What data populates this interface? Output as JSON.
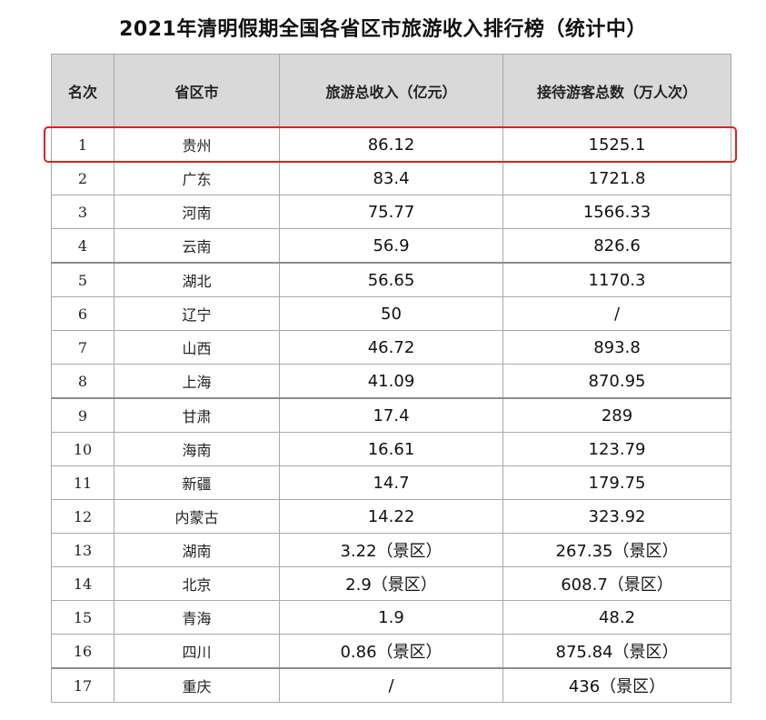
{
  "title": "2021年清明假期全国各省区市旅游收入排行榜（统计中）",
  "headers": [
    "名次",
    "省区市",
    "旅游总收入（亿元）",
    "接待游客总数（万人次）"
  ],
  "rows": [
    {
      "rank": "1",
      "province": "贵州",
      "revenue": "86.12",
      "visitors": "1525.1"
    },
    {
      "rank": "2",
      "province": "广东",
      "revenue": "83.4",
      "visitors": "1721.8"
    },
    {
      "rank": "3",
      "province": "河南",
      "revenue": "75.77",
      "visitors": "1566.33"
    },
    {
      "rank": "4",
      "province": "云南",
      "revenue": "56.9",
      "visitors": "826.6"
    },
    {
      "rank": "5",
      "province": "湖北",
      "revenue": "56.65",
      "visitors": "1170.3"
    },
    {
      "rank": "6",
      "province": "辽宁",
      "revenue": "50",
      "visitors": "/"
    },
    {
      "rank": "7",
      "province": "山西",
      "revenue": "46.72",
      "visitors": "893.8"
    },
    {
      "rank": "8",
      "province": "上海",
      "revenue": "41.09",
      "visitors": "870.95"
    },
    {
      "rank": "9",
      "province": "甘肃",
      "revenue": "17.4",
      "visitors": "289"
    },
    {
      "rank": "10",
      "province": "海南",
      "revenue": "16.61",
      "visitors": "123.79"
    },
    {
      "rank": "11",
      "province": "新疆",
      "revenue": "14.7",
      "visitors": "179.75"
    },
    {
      "rank": "12",
      "province": "内蒙古",
      "revenue": "14.22",
      "visitors": "323.92"
    },
    {
      "rank": "13",
      "province": "湖南",
      "revenue": "3.22（景区）",
      "visitors": "267.35（景区）"
    },
    {
      "rank": "14",
      "province": "北京",
      "revenue": "2.9（景区）",
      "visitors": "608.7（景区）"
    },
    {
      "rank": "15",
      "province": "青海",
      "revenue": "1.9",
      "visitors": "48.2"
    },
    {
      "rank": "16",
      "province": "四川",
      "revenue": "0.86（景区）",
      "visitors": "875.84（景区）"
    },
    {
      "rank": "17",
      "province": "重庆",
      "revenue": "/",
      "visitors": "436（景区）"
    }
  ],
  "highlight_color": "#e02020",
  "header_bg": "#d9d9d9"
}
